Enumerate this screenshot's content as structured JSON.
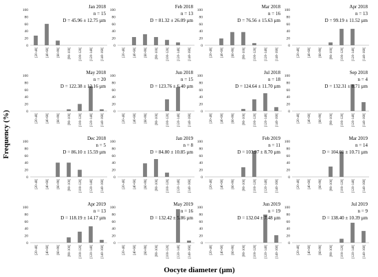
{
  "figure": {
    "ylabel": "Frequency (%)",
    "xlabel": "Oocyte diameter (µm)"
  },
  "chart_data": {
    "type": "bar",
    "ylim": [
      0,
      100
    ],
    "yticks": [
      0,
      20,
      40,
      60,
      80,
      100
    ],
    "categories": [
      "[20-40[",
      "[40-60[",
      "[60-80[",
      "[80-100[",
      "[100-120[",
      "[120-140[",
      "[140-160["
    ],
    "bar_color": "#7f7f7f",
    "panels": [
      {
        "title": "Jan 2018",
        "n": "n = 15",
        "d": "D = 45.96 ± 12.75 µm",
        "values": [
          27,
          60,
          13,
          0,
          0,
          0,
          0
        ]
      },
      {
        "title": "Feb 2018",
        "n": "n = 13",
        "d": "D = 81.32 ± 26.09 µm",
        "values": [
          0,
          23,
          31,
          23,
          15,
          8,
          0
        ]
      },
      {
        "title": "Mar 2018",
        "n": "n = 16",
        "d": "D = 76.56 ± 15.63 µm",
        "values": [
          0,
          19,
          37,
          37,
          6,
          0,
          0
        ]
      },
      {
        "title": "Apr 2018",
        "n": "n = 13",
        "d": "D = 99.19 ± 11.52 µm",
        "values": [
          0,
          0,
          0,
          8,
          46,
          46,
          0
        ]
      },
      {
        "title": "May 2018",
        "n": "n = 20",
        "d": "D = 122.38 ± 12.16 µm",
        "values": [
          0,
          0,
          0,
          5,
          20,
          70,
          5
        ]
      },
      {
        "title": "Jun 2018",
        "n": "n = 15",
        "d": "D = 123.76 ± 6.40 µm",
        "values": [
          0,
          0,
          0,
          0,
          33,
          67,
          0
        ]
      },
      {
        "title": "Jul 2018",
        "n": "n = 18",
        "d": "D = 124.64 ± 11.70 µm",
        "values": [
          0,
          0,
          0,
          6,
          33,
          50,
          11
        ]
      },
      {
        "title": "Sep 2018",
        "n": "n = 4",
        "d": "D = 132.31 ± 8.71 µm",
        "values": [
          0,
          0,
          0,
          0,
          0,
          75,
          25
        ]
      },
      {
        "title": "Dec 2018",
        "n": "n = 5",
        "d": "D = 86.10 ± 15.59 µm",
        "values": [
          0,
          0,
          40,
          40,
          20,
          0,
          0
        ]
      },
      {
        "title": "Jan 2019",
        "n": "n = 8",
        "d": "D = 84.80 ± 10.85 µm",
        "values": [
          0,
          0,
          38,
          50,
          12,
          0,
          0
        ]
      },
      {
        "title": "Feb 2019",
        "n": "n = 11",
        "d": "D = 103.97 ± 8.70 µm",
        "values": [
          0,
          0,
          0,
          27,
          73,
          0,
          0
        ]
      },
      {
        "title": "Mar 2019",
        "n": "n = 14",
        "d": "D = 104.01 ± 10.71 µm",
        "values": [
          0,
          0,
          0,
          29,
          71,
          0,
          0
        ]
      },
      {
        "title": "Apr 2019",
        "n": "n = 13",
        "d": "D = 118.19 ± 14.17 µm",
        "values": [
          0,
          0,
          0,
          15,
          31,
          46,
          8
        ]
      },
      {
        "title": "May 2019",
        "n": "n = 16",
        "d": "D = 132.42 ± 5.86 µm",
        "values": [
          0,
          0,
          0,
          0,
          0,
          94,
          6
        ]
      },
      {
        "title": "Jun 2019",
        "n": "n = 19",
        "d": "D = 132.04 ± 7.48 µm",
        "values": [
          0,
          0,
          0,
          0,
          0,
          79,
          21
        ]
      },
      {
        "title": "Jul 2019",
        "n": "n = 9",
        "d": "D = 138.40 ± 10.39 µm",
        "values": [
          0,
          0,
          0,
          0,
          11,
          56,
          33
        ]
      }
    ]
  }
}
